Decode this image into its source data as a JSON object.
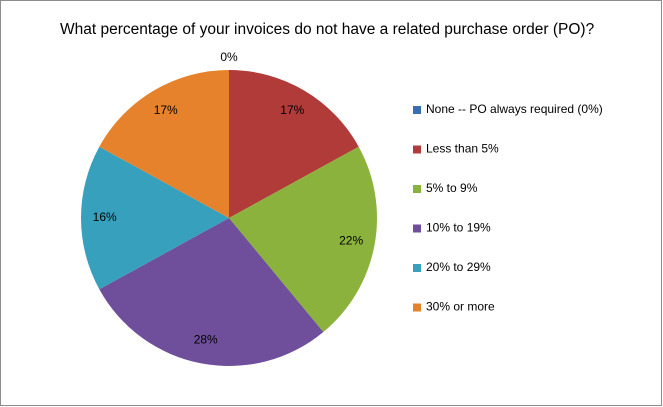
{
  "chart_data": {
    "type": "pie",
    "title": "What percentage of your invoices do not have a related purchase order (PO)?",
    "categories": [
      "None -- PO always required (0%)",
      "Less than 5%",
      "5% to 9%",
      "10% to 19%",
      "20% to 29%",
      "30% or more"
    ],
    "values": [
      0,
      17,
      22,
      28,
      16,
      17
    ],
    "value_labels": [
      "0%",
      "17%",
      "22%",
      "28%",
      "16%",
      "17%"
    ],
    "colors": [
      "#3b6db1",
      "#b03b38",
      "#8cb23e",
      "#6f4f9b",
      "#36a0bd",
      "#e5822b"
    ],
    "legend": "right"
  }
}
